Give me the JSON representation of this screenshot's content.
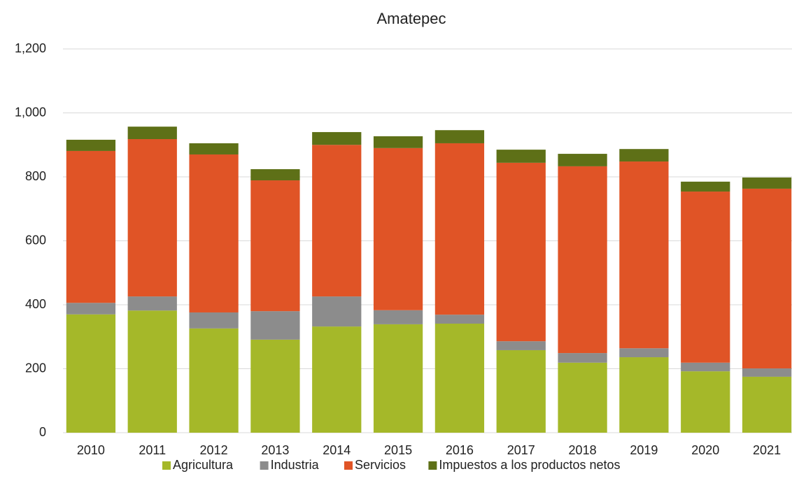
{
  "chart_data": {
    "type": "stacked_bar",
    "title": "Amatepec",
    "categories": [
      "2010",
      "2011",
      "2012",
      "2013",
      "2014",
      "2015",
      "2016",
      "2017",
      "2018",
      "2019",
      "2020",
      "2021"
    ],
    "series": [
      {
        "name": "Agricultura",
        "color": "#a5b829",
        "values": [
          370,
          382,
          326,
          291,
          332,
          339,
          341,
          258,
          219,
          236,
          192,
          175
        ]
      },
      {
        "name": "Industria",
        "color": "#8c8c8c",
        "values": [
          36,
          44,
          50,
          89,
          94,
          44,
          28,
          28,
          30,
          28,
          27,
          26
        ]
      },
      {
        "name": "Servicios",
        "color": "#e05426",
        "values": [
          475,
          492,
          494,
          409,
          474,
          507,
          536,
          558,
          584,
          584,
          535,
          562
        ]
      },
      {
        "name": "Impuestos a los productos netos",
        "color": "#5e7017",
        "values": [
          35,
          39,
          35,
          35,
          40,
          37,
          41,
          41,
          39,
          39,
          31,
          35
        ]
      }
    ],
    "ylim": [
      0,
      1200
    ],
    "yticks": [
      0,
      200,
      400,
      600,
      800,
      {
        "value": 1000,
        "label": "1,000"
      },
      {
        "value": 1200,
        "label": "1,200"
      }
    ],
    "grid": true,
    "legend": "bottom"
  }
}
